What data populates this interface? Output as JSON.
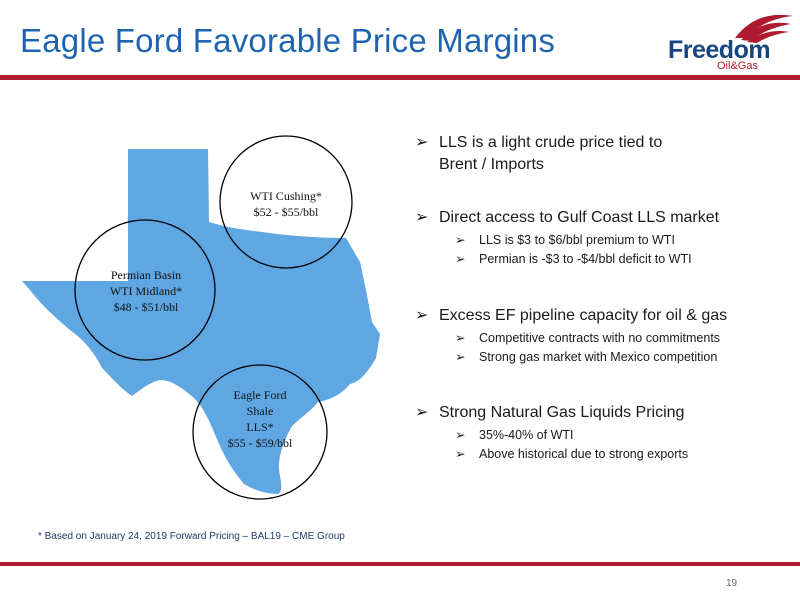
{
  "slide": {
    "title": "Eagle Ford Favorable Price Margins",
    "page_number": "19",
    "footnote": "* Based on January 24, 2019 Forward Pricing – BAL19 – CME Group"
  },
  "logo": {
    "word": "Freedom",
    "sub": "Oil&Gas"
  },
  "map_labels": {
    "cushing": [
      "WTI Cushing*",
      "$52 - $55/bbl"
    ],
    "permian": [
      "Permian Basin",
      "WTI Midland*",
      "$48 - $51/bbl"
    ],
    "eagle_ford": [
      "Eagle Ford",
      "Shale",
      "LLS*",
      "$55 - $59/bbl"
    ]
  },
  "bullet_marker": "➢",
  "bullets": [
    {
      "text": [
        "LLS is a light crude price tied to",
        "Brent / Imports"
      ],
      "sub": []
    },
    {
      "text": [
        "Direct access to Gulf Coast LLS market"
      ],
      "sub": [
        "LLS is $3 to $6/bbl premium to WTI",
        "Permian is -$3 to -$4/bbl  deficit to WTI"
      ]
    },
    {
      "text": [
        "Excess EF pipeline capacity for oil & gas"
      ],
      "sub": [
        "Competitive contracts with no commitments",
        "Strong gas market with Mexico competition"
      ]
    },
    {
      "text": [
        "Strong Natural Gas Liquids Pricing"
      ],
      "sub": [
        "35%-40% of WTI",
        "Above historical due to strong exports"
      ]
    }
  ],
  "colors": {
    "title": "#1f64b0",
    "rule": "#b01a30",
    "texas": "#5fa7e3",
    "logo_text": "#16467f"
  }
}
